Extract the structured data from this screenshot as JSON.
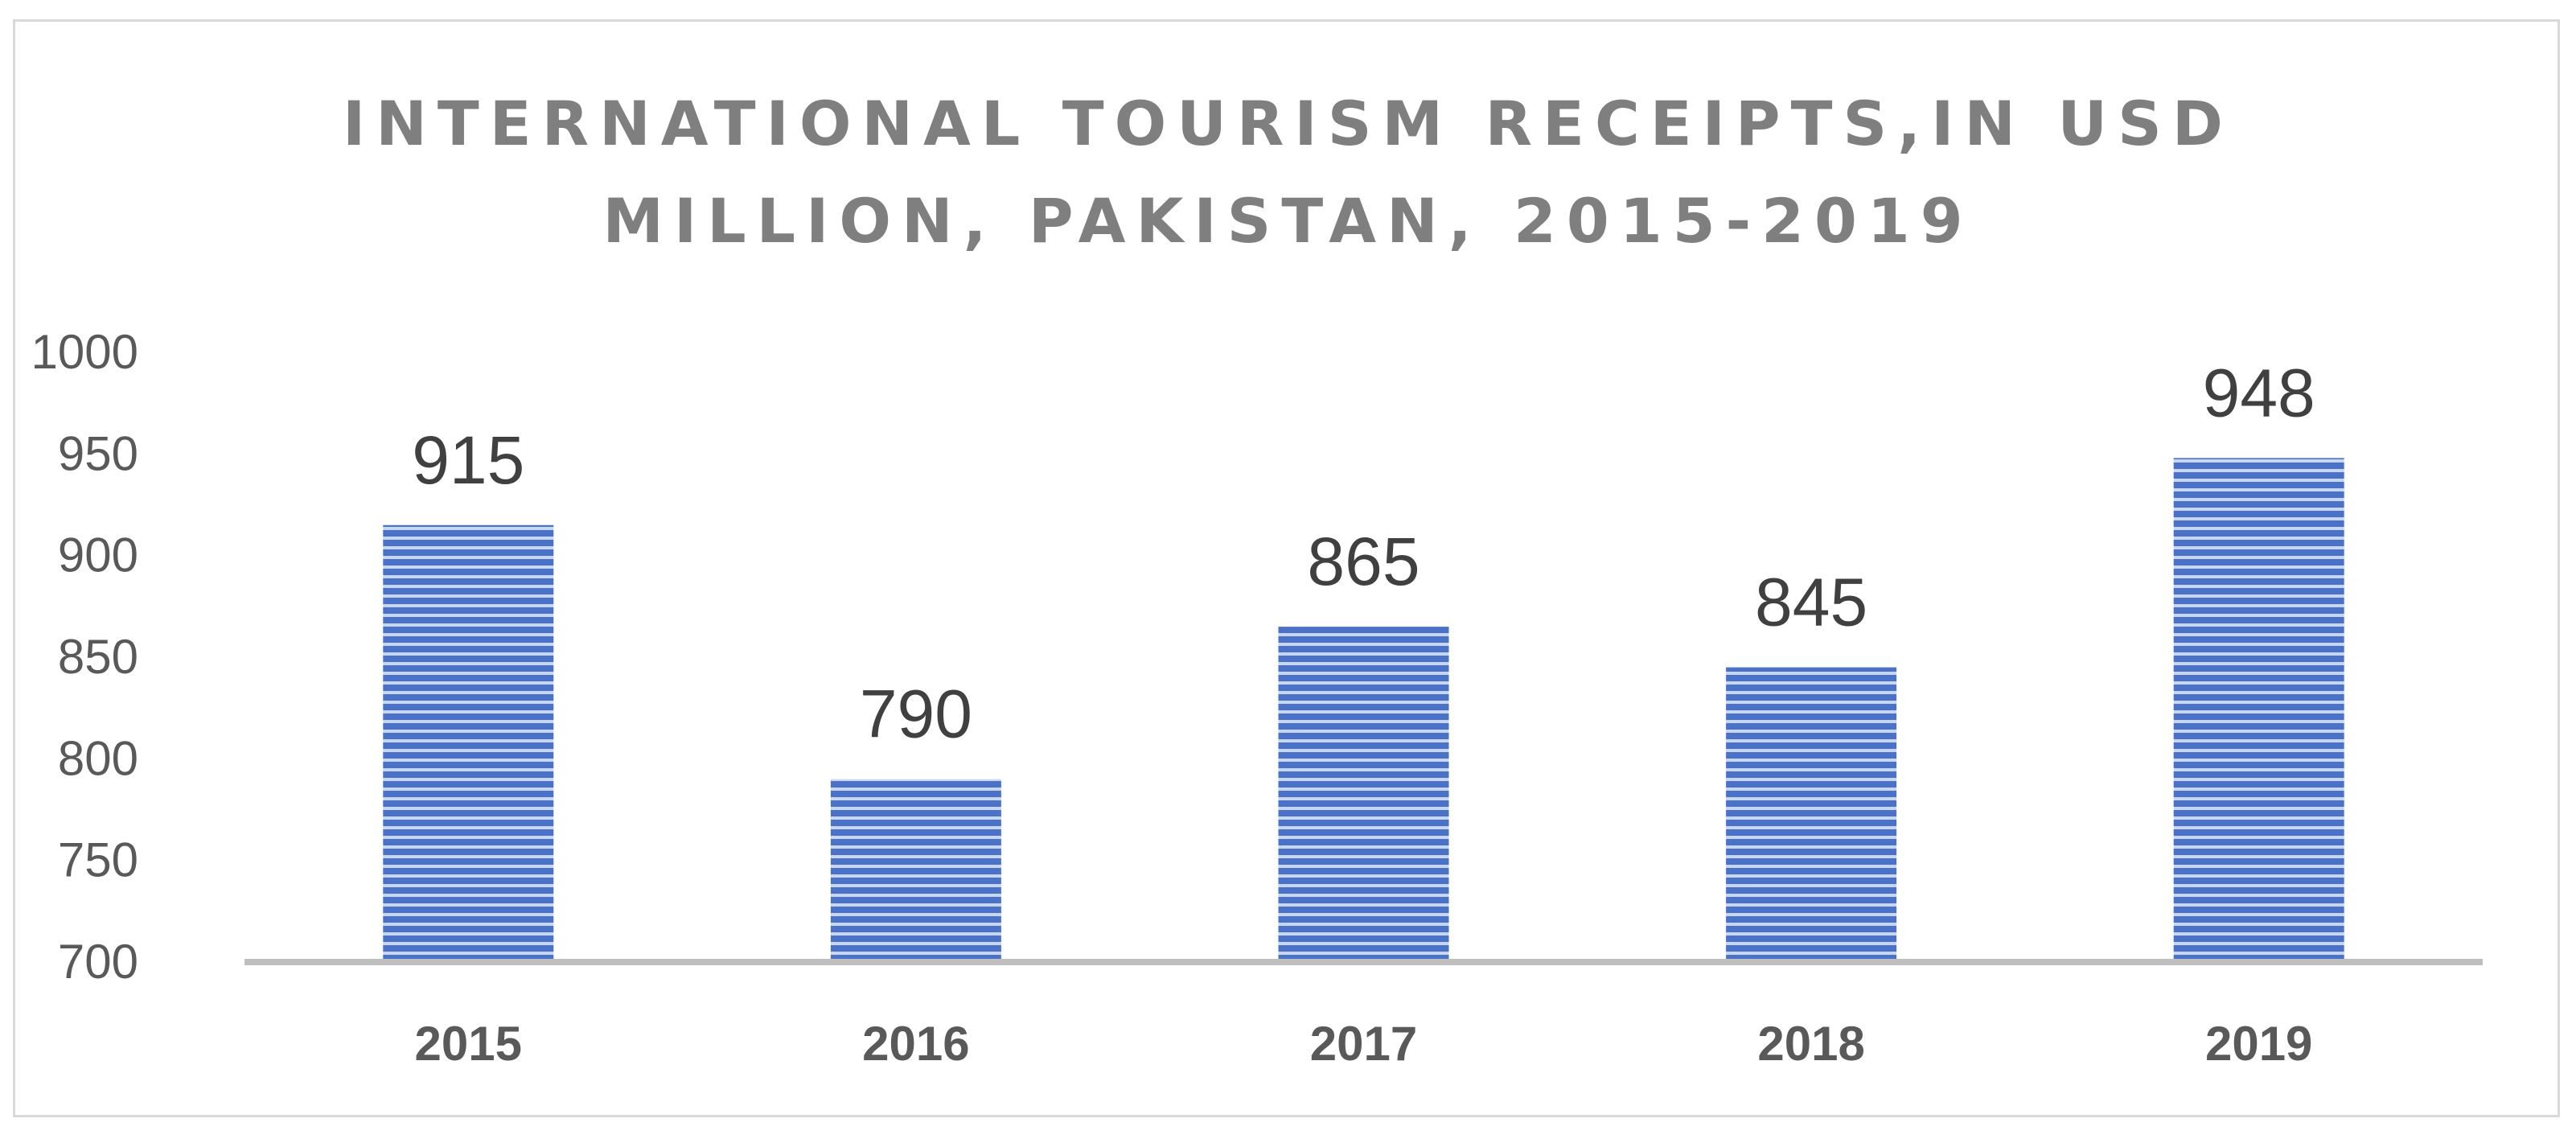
{
  "chart_data": {
    "type": "bar",
    "title_lines": [
      "INTERNATIONAL TOURISM RECEIPTS,IN USD",
      "MILLION, PAKISTAN, 2015-2019"
    ],
    "categories": [
      "2015",
      "2016",
      "2017",
      "2018",
      "2019"
    ],
    "values": [
      915,
      790,
      865,
      845,
      948
    ],
    "data_labels": [
      "915",
      "790",
      "865",
      "845",
      "948"
    ],
    "y_ticks": [
      "1000",
      "950",
      "900",
      "850",
      "800",
      "750",
      "700"
    ],
    "ylim": [
      700,
      1000
    ],
    "grid": false,
    "legend": "none",
    "xlabel": "",
    "ylabel": "",
    "colors": {
      "bar_fill": "#4a72c8",
      "bar_stripe_light": "#c9d6f0",
      "axis": "#bfbfbf",
      "tick_text": "#595959",
      "data_label_text": "#404040",
      "title_text": "#7f7f7f"
    }
  }
}
